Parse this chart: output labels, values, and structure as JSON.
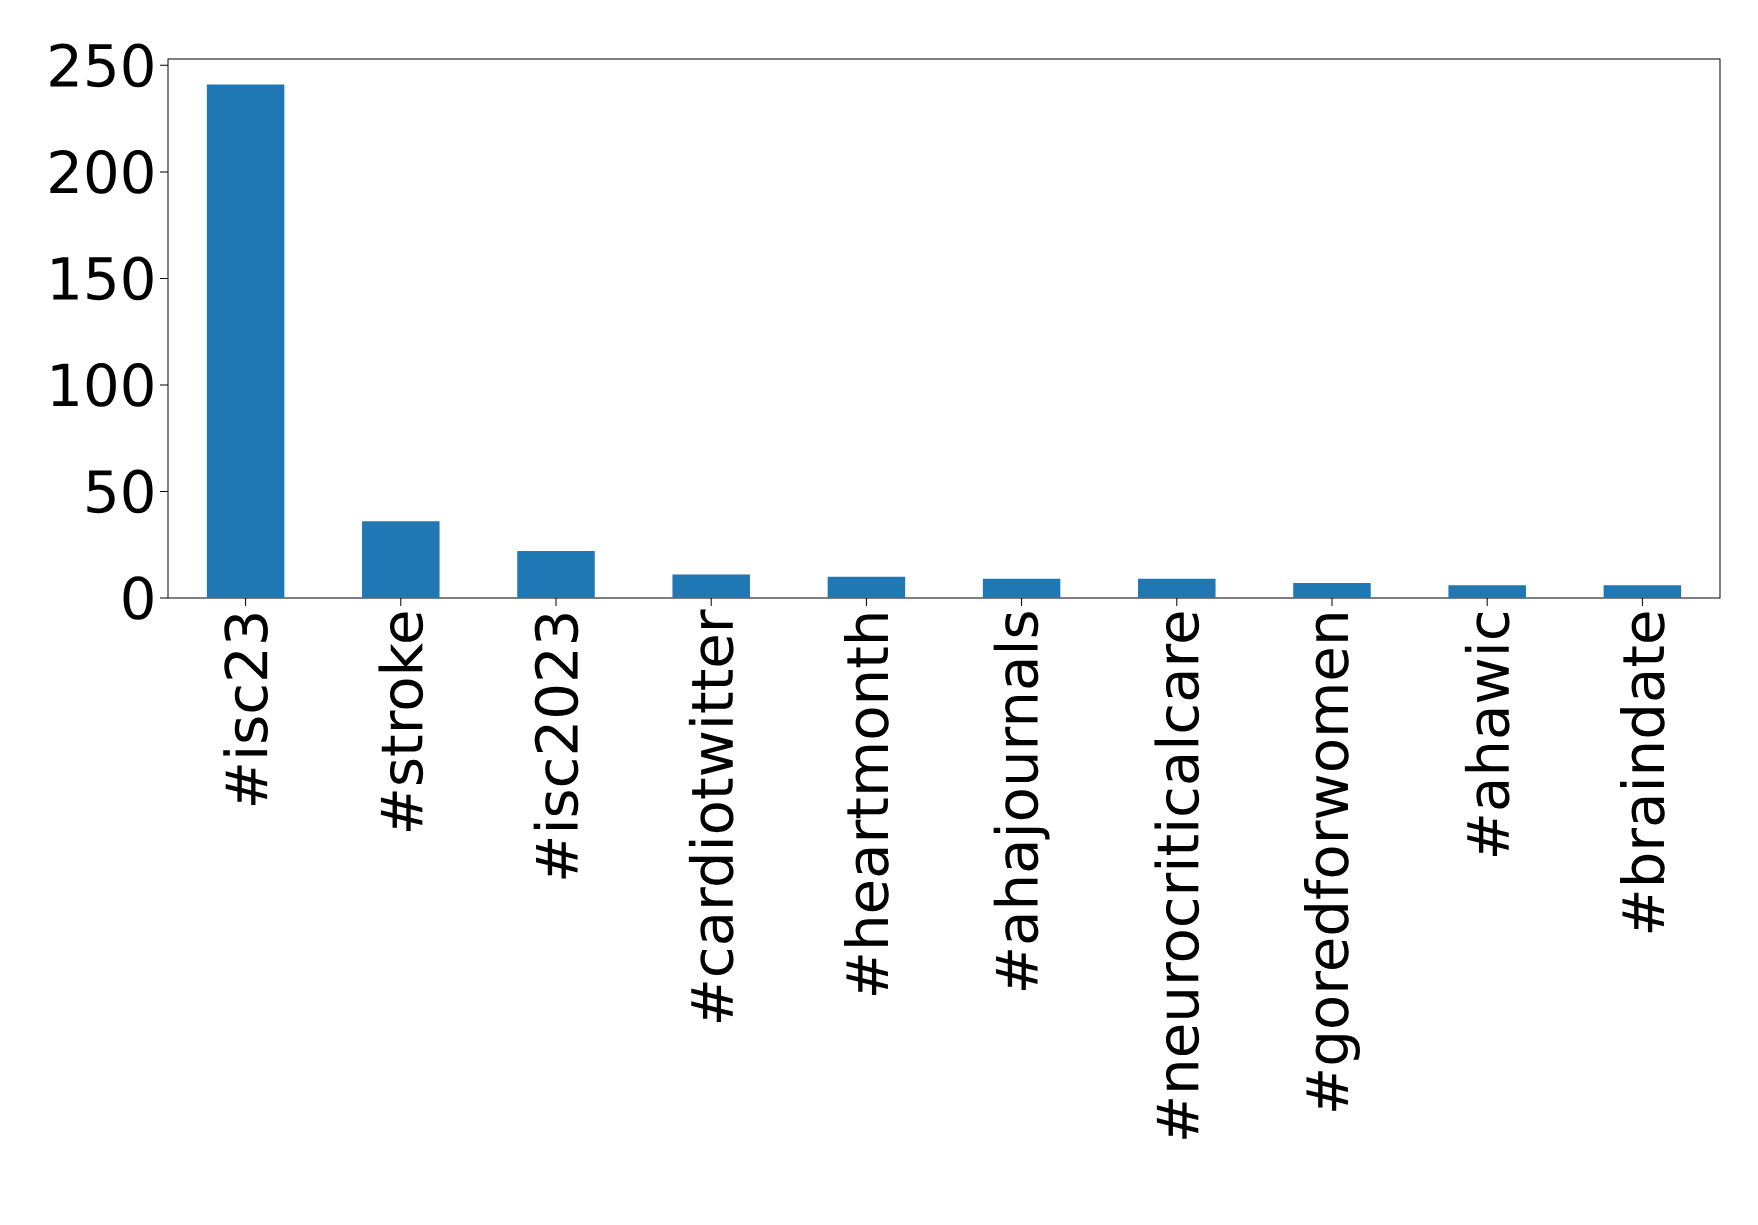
{
  "chart_data": {
    "type": "bar",
    "categories": [
      "#isc23",
      "#stroke",
      "#isc2023",
      "#cardiotwitter",
      "#heartmonth",
      "#ahajournals",
      "#neurocriticalcare",
      "#goredforwomen",
      "#ahawic",
      "#braindate"
    ],
    "values": [
      241,
      36,
      22,
      11,
      10,
      9,
      9,
      7,
      6,
      6
    ],
    "color": "#1f77b4",
    "ylim": [
      0,
      253
    ],
    "yticks": [
      0,
      50,
      100,
      150,
      200,
      250
    ],
    "grid": false
  }
}
